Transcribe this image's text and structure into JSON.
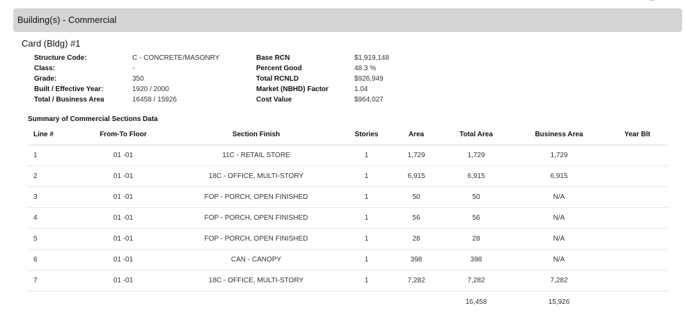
{
  "header": {
    "title": "Building(s) - Commercial"
  },
  "card": {
    "title": "Card (Bldg) #1",
    "left": [
      {
        "label": "Structure Code:",
        "value": "C - CONCRETE/MASONRY"
      },
      {
        "label": "Class:",
        "value": "-"
      },
      {
        "label": "Grade:",
        "value": "350"
      },
      {
        "label": "Built / Effective Year:",
        "value": "1920 / 2000"
      },
      {
        "label": "Total / Business Area",
        "value": "16458 / 15926"
      }
    ],
    "right": [
      {
        "label": "Base RCN",
        "value": "$1,919,148"
      },
      {
        "label": "Percent Good",
        "value": "48.3 %"
      },
      {
        "label": "Total RCNLD",
        "value": "$926,949"
      },
      {
        "label": "Market (NBHD) Factor",
        "value": "1.04"
      },
      {
        "label": "Cost Value",
        "value": "$964,027"
      }
    ]
  },
  "summary": {
    "title": "Summary of Commercial Sections Data",
    "columns": [
      "Line #",
      "From-To Floor",
      "Section Finish",
      "Stories",
      "Area",
      "Total Area",
      "Business Area",
      "Year Blt"
    ],
    "rows": [
      [
        "1",
        "01 -01",
        "11C - RETAIL STORE",
        "1",
        "1,729",
        "1,729",
        "1,729",
        ""
      ],
      [
        "2",
        "01 -01",
        "18C - OFFICE, MULTI-STORY",
        "1",
        "6,915",
        "6,915",
        "6,915",
        ""
      ],
      [
        "3",
        "01 -01",
        "FOP - PORCH, OPEN FINISHED",
        "1",
        "50",
        "50",
        "N/A",
        ""
      ],
      [
        "4",
        "01 -01",
        "FOP - PORCH, OPEN FINISHED",
        "1",
        "56",
        "56",
        "N/A",
        ""
      ],
      [
        "5",
        "01 -01",
        "FOP - PORCH, OPEN FINISHED",
        "1",
        "28",
        "28",
        "N/A",
        ""
      ],
      [
        "6",
        "01 -01",
        "CAN - CANOPY",
        "1",
        "398",
        "398",
        "N/A",
        ""
      ],
      [
        "7",
        "01 -01",
        "18C - OFFICE, MULTI-STORY",
        "1",
        "7,282",
        "7,282",
        "7,282",
        ""
      ]
    ],
    "totals": {
      "total_area": "16,458",
      "business_area": "15,926"
    }
  }
}
